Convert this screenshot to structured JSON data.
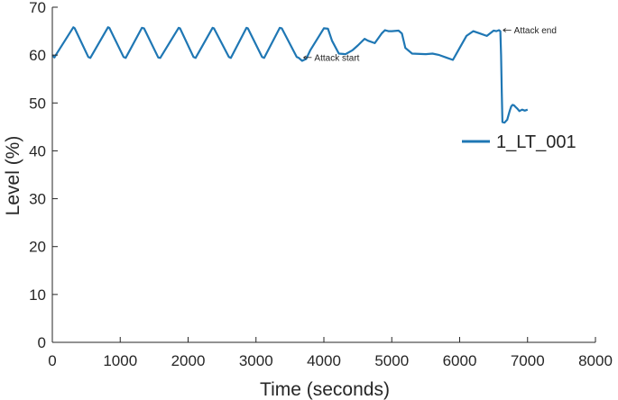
{
  "chart_data": {
    "type": "line",
    "xlabel": "Time (seconds)",
    "ylabel": "Level (%)",
    "xlim": [
      0,
      8000
    ],
    "ylim": [
      0,
      70
    ],
    "xticks": [
      0,
      1000,
      2000,
      3000,
      4000,
      5000,
      6000,
      7000,
      8000
    ],
    "yticks": [
      0,
      10,
      20,
      30,
      40,
      50,
      60,
      70
    ],
    "grid": false,
    "legend_position": "right",
    "colors": {
      "series": "#1f77b4",
      "axis": "#262626"
    },
    "series": [
      {
        "name": "1_LT_001",
        "x": [
          0,
          30,
          60,
          310,
          330,
          530,
          560,
          820,
          840,
          1050,
          1080,
          1320,
          1350,
          1560,
          1590,
          1860,
          1880,
          2080,
          2110,
          2360,
          2380,
          2600,
          2630,
          2860,
          2880,
          3090,
          3120,
          3350,
          3380,
          3600,
          3630,
          3680,
          3740,
          3800,
          4000,
          4060,
          4120,
          4220,
          4320,
          4420,
          4500,
          4600,
          4650,
          4750,
          4850,
          4900,
          4950,
          5000,
          5100,
          5150,
          5200,
          5300,
          5500,
          5600,
          5700,
          5800,
          5900,
          6000,
          6100,
          6200,
          6300,
          6400,
          6500,
          6540,
          6580,
          6600,
          6610,
          6620,
          6630,
          6660,
          6700,
          6720,
          6740,
          6760,
          6780,
          6800,
          6820,
          6850,
          6880,
          6920,
          6960,
          7000
        ],
        "y": [
          60.0,
          59.5,
          60.2,
          65.8,
          65.6,
          59.6,
          59.4,
          65.8,
          65.7,
          59.6,
          59.4,
          65.7,
          65.6,
          59.5,
          59.4,
          65.7,
          65.6,
          59.6,
          59.4,
          65.7,
          65.6,
          59.6,
          59.4,
          65.7,
          65.6,
          59.6,
          59.4,
          65.7,
          65.6,
          59.6,
          59.4,
          58.8,
          59.2,
          61.0,
          65.6,
          65.5,
          63.0,
          60.3,
          60.2,
          61.0,
          62.0,
          63.4,
          63.0,
          62.5,
          64.5,
          65.2,
          65.0,
          65.0,
          65.1,
          64.5,
          61.5,
          60.3,
          60.2,
          60.3,
          60.0,
          59.5,
          59.0,
          61.5,
          64.0,
          65.0,
          64.5,
          64.0,
          65.1,
          65.0,
          65.2,
          65.0,
          60.0,
          52.0,
          46.0,
          45.9,
          46.5,
          47.5,
          48.5,
          49.3,
          49.6,
          49.5,
          49.2,
          48.8,
          48.3,
          48.6,
          48.4,
          48.6
        ]
      }
    ],
    "annotations": [
      {
        "text": "Attack start",
        "x": 3700,
        "y": 59.5
      },
      {
        "text": "Attack end",
        "x": 6640,
        "y": 65.2
      }
    ]
  }
}
